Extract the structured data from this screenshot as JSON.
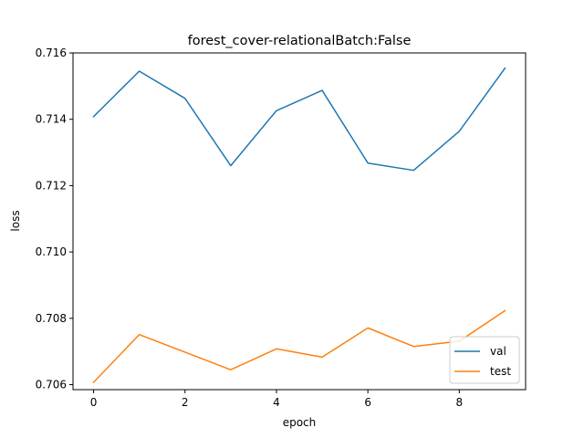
{
  "chart_data": {
    "type": "line",
    "title": "forest_cover-relationalBatch:False",
    "xlabel": "epoch",
    "ylabel": "loss",
    "xlim": [
      -0.45,
      9.45
    ],
    "ylim": [
      0.70585,
      0.716
    ],
    "xticks": [
      0,
      2,
      4,
      6,
      8
    ],
    "xtick_labels": [
      "0",
      "2",
      "4",
      "6",
      "8"
    ],
    "yticks": [
      0.706,
      0.708,
      0.71,
      0.712,
      0.714,
      0.716
    ],
    "ytick_labels": [
      "0.706",
      "0.708",
      "0.710",
      "0.712",
      "0.714",
      "0.716"
    ],
    "grid": false,
    "legend_position": "lower-right",
    "x": [
      0,
      1,
      2,
      3,
      4,
      5,
      6,
      7,
      8,
      9
    ],
    "series": [
      {
        "name": "val",
        "color": "#1f77b4",
        "values": [
          0.71408,
          0.71545,
          0.71463,
          0.7126,
          0.71426,
          0.71487,
          0.71268,
          0.71246,
          0.71364,
          0.71554
        ]
      },
      {
        "name": "test",
        "color": "#ff7f0e",
        "values": [
          0.70607,
          0.70751,
          0.70698,
          0.70645,
          0.70708,
          0.70683,
          0.70771,
          0.70715,
          0.70731,
          0.70823
        ]
      }
    ]
  }
}
